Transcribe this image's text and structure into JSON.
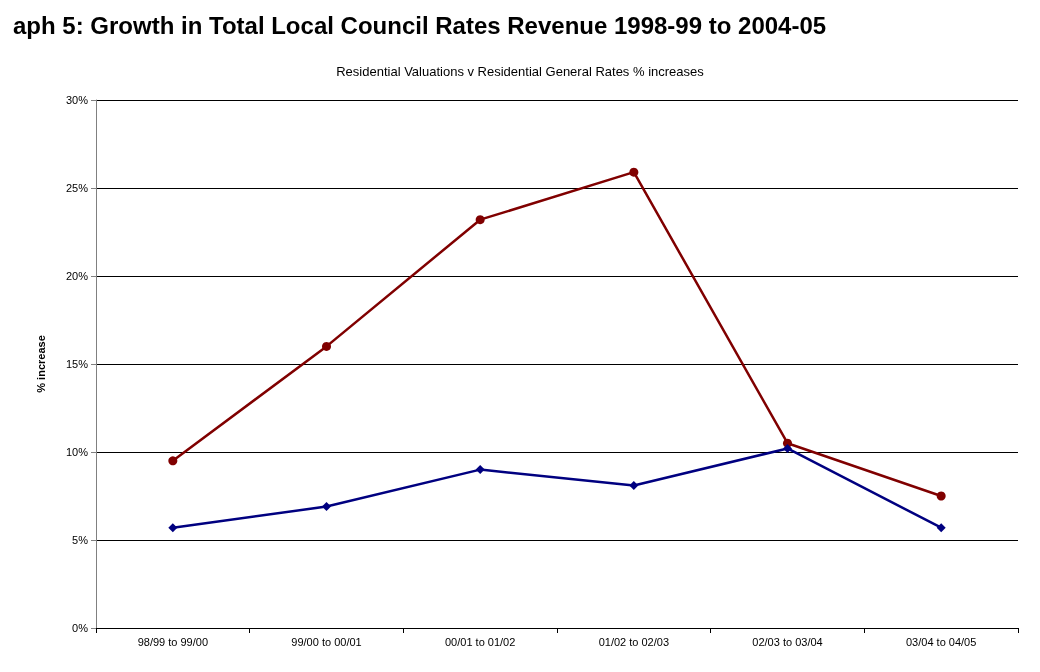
{
  "chart_data": {
    "type": "line",
    "title": "aph 5: Growth in Total Local Council Rates Revenue 1998-99 to 2004-05",
    "subtitle": "Residential Valuations v Residential General Rates % increases",
    "ylabel": "% increase",
    "categories": [
      "98/99 to 99/00",
      "99/00 to 00/01",
      "00/01 to 01/02",
      "01/02 to 02/03",
      "02/03 to 03/04",
      "03/04 to 04/05"
    ],
    "series": [
      {
        "color": "#800000",
        "marker": "circle",
        "values": [
          9.5,
          16.0,
          23.2,
          25.9,
          10.5,
          7.5
        ]
      },
      {
        "color": "#000080",
        "marker": "diamond",
        "values": [
          5.7,
          6.9,
          9.0,
          8.1,
          10.2,
          5.7
        ]
      }
    ],
    "ylim": [
      0,
      30
    ],
    "yticks": [
      {
        "value": 0,
        "label": "0%"
      },
      {
        "value": 5,
        "label": "5%"
      },
      {
        "value": 10,
        "label": "10%"
      },
      {
        "value": 15,
        "label": "15%"
      },
      {
        "value": 20,
        "label": "20%"
      },
      {
        "value": 25,
        "label": "25%"
      },
      {
        "value": 30,
        "label": "30%"
      }
    ],
    "grid": "y",
    "line_style": "solid"
  }
}
